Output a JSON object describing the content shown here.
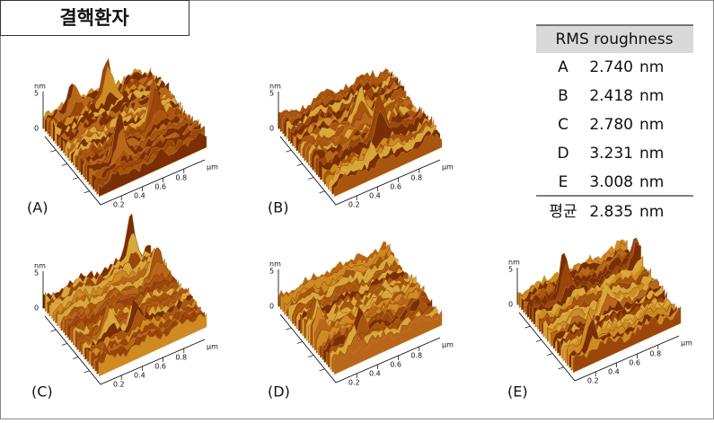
{
  "title": "결핵환자",
  "axis": {
    "z_unit": "nm",
    "z_ticks": [
      "5",
      "0"
    ],
    "x_unit": "μm",
    "x_ticks": [
      "0.2",
      "0.4",
      "0.6",
      "0.8"
    ]
  },
  "panels": [
    "(A)",
    "(B)",
    "(C)",
    "(D)",
    "(E)"
  ],
  "table": {
    "header": "RMS roughness",
    "rows": [
      [
        "A",
        "2.740",
        "nm"
      ],
      [
        "B",
        "2.418",
        "nm"
      ],
      [
        "C",
        "2.780",
        "nm"
      ],
      [
        "D",
        "3.231",
        "nm"
      ],
      [
        "E",
        "3.008",
        "nm"
      ]
    ],
    "average": [
      "평균",
      "2.835",
      "nm"
    ]
  }
}
